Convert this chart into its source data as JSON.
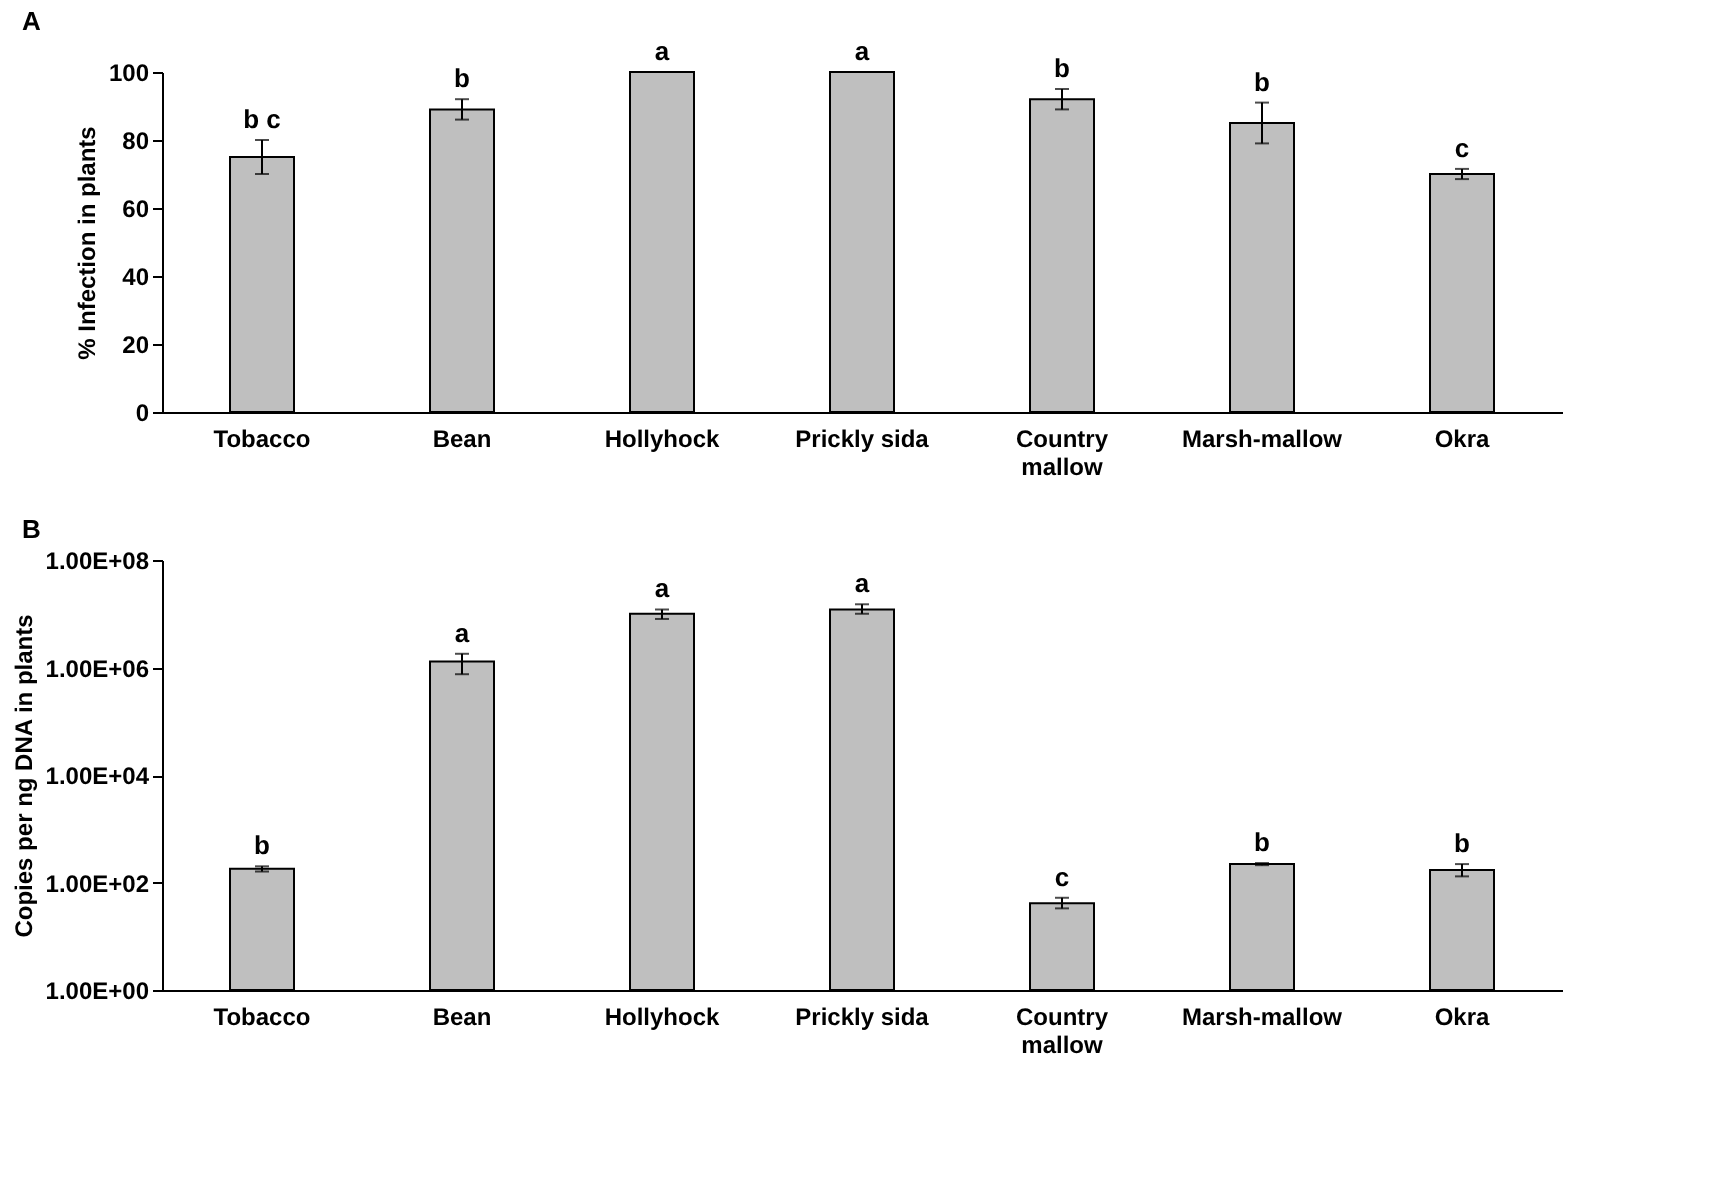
{
  "chart_data": [
    {
      "type": "bar",
      "title": "A",
      "ylabel": "% Infection in plants",
      "categories": [
        "Tobacco",
        "Bean",
        "Hollyhock",
        "Prickly sida",
        "Country mallow",
        "Marsh-mallow",
        "Okra"
      ],
      "values": [
        75,
        89,
        100,
        100,
        92,
        85,
        70
      ],
      "color": "#bfbfbf",
      "errors": [
        5,
        3,
        null,
        null,
        3,
        6,
        1.5
      ],
      "ylim": [
        0,
        100
      ],
      "yticks": [
        0,
        20,
        40,
        60,
        80,
        100
      ],
      "grid": false,
      "annotations": [
        {
          "text": "b c",
          "x": "Tobacco",
          "y": 80
        },
        {
          "text": "b",
          "x": "Bean",
          "y": 92
        },
        {
          "text": "a",
          "x": "Hollyhock",
          "y": 100
        },
        {
          "text": "a",
          "x": "Prickly sida",
          "y": 100
        },
        {
          "text": "b",
          "x": "Country mallow",
          "y": 95
        },
        {
          "text": "b",
          "x": "Marsh-mallow",
          "y": 91
        },
        {
          "text": "c",
          "x": "Okra",
          "y": 71.5
        }
      ]
    },
    {
      "type": "bar",
      "title": "B",
      "ylabel": "Copies per ng DNA in plants",
      "log": true,
      "categories": [
        "Tobacco",
        "Bean",
        "Hollyhock",
        "Prickly sida",
        "Country mallow",
        "Marsh-mallow",
        "Okra"
      ],
      "values": [
        180,
        1300000,
        10000000,
        12000000,
        41,
        220,
        170
      ],
      "color": "#bfbfbf",
      "errors": [
        [
          160,
          200
        ],
        [
          750000,
          1800000
        ],
        [
          8000000,
          12000000
        ],
        [
          10000000,
          15000000
        ],
        [
          33,
          52
        ],
        [
          210,
          230
        ],
        [
          130,
          220
        ]
      ],
      "ylim": [
        1,
        100000000
      ],
      "yticks": [
        {
          "value": 1,
          "label": "1.00E+00"
        },
        {
          "value": 100,
          "label": "1.00E+02"
        },
        {
          "value": 10000,
          "label": "1.00E+04"
        },
        {
          "value": 1000000,
          "label": "1.00E+06"
        },
        {
          "value": 100000000,
          "label": "1.00E+08"
        }
      ],
      "grid": false,
      "annotations": [
        {
          "text": "b",
          "x": "Tobacco",
          "y": 200
        },
        {
          "text": "a",
          "x": "Bean",
          "y": 1800000
        },
        {
          "text": "a",
          "x": "Hollyhock",
          "y": 12000000
        },
        {
          "text": "a",
          "x": "Prickly sida",
          "y": 15000000
        },
        {
          "text": "c",
          "x": "Country mallow",
          "y": 52
        },
        {
          "text": "b",
          "x": "Marsh-mallow",
          "y": 230
        },
        {
          "text": "b",
          "x": "Okra",
          "y": 220
        }
      ]
    }
  ]
}
